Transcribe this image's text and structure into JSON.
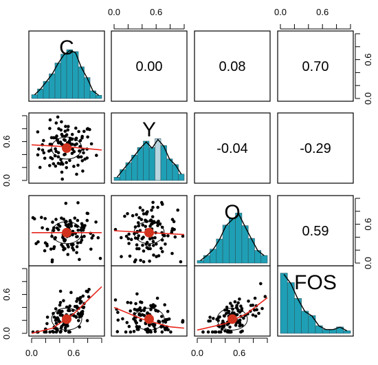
{
  "chart_data": {
    "type": "scatter-matrix",
    "variables": [
      "C",
      "Y",
      "O",
      "FOS"
    ],
    "axis": {
      "range": [
        0,
        1
      ],
      "ticks": [
        0.0,
        0.2,
        0.4,
        0.6,
        0.8,
        1.0
      ],
      "tick_labels": [
        "0.0",
        "0.6"
      ]
    },
    "colors": {
      "histogram_fill": "#1f9fb5",
      "histogram_fill_light": "#b8d6e0",
      "density_line": "#000000",
      "scatter_point": "#000000",
      "loess_line": "#e8261c",
      "mean_point": "#d0321d"
    },
    "correlations": [
      {
        "row": 0,
        "col": 1,
        "value": "0.00"
      },
      {
        "row": 0,
        "col": 2,
        "value": "0.08"
      },
      {
        "row": 0,
        "col": 3,
        "value": "0.70"
      },
      {
        "row": 1,
        "col": 2,
        "value": "-0.04"
      },
      {
        "row": 1,
        "col": 3,
        "value": "-0.29"
      },
      {
        "row": 2,
        "col": 3,
        "value": "0.59"
      }
    ],
    "histograms": {
      "C": [
        0.06,
        0.15,
        0.27,
        0.39,
        0.56,
        0.7,
        0.77,
        0.74,
        0.5,
        0.33,
        0.12,
        0.05
      ],
      "Y": [
        0.05,
        0.17,
        0.28,
        0.4,
        0.52,
        0.62,
        0.52,
        0.66,
        0.55,
        0.34,
        0.25,
        0.1
      ],
      "O": [
        0.04,
        0.12,
        0.22,
        0.38,
        0.6,
        0.7,
        0.79,
        0.59,
        0.39,
        0.2,
        0.12
      ],
      "FOS": [
        0.95,
        0.8,
        0.55,
        0.35,
        0.28,
        0.12,
        0.06,
        0.06,
        0.1,
        0.04
      ]
    },
    "mean_points": [
      {
        "row": 1,
        "col": 0,
        "x": 0.5,
        "y": 0.5
      },
      {
        "row": 2,
        "col": 0,
        "x": 0.5,
        "y": 0.47
      },
      {
        "row": 2,
        "col": 1,
        "x": 0.5,
        "y": 0.47
      },
      {
        "row": 3,
        "col": 0,
        "x": 0.5,
        "y": 0.22
      },
      {
        "row": 3,
        "col": 1,
        "x": 0.5,
        "y": 0.22
      },
      {
        "row": 3,
        "col": 2,
        "x": 0.5,
        "y": 0.22
      }
    ],
    "loess_lines": [
      {
        "row": 1,
        "col": 0,
        "points": [
          [
            0.0,
            0.55
          ],
          [
            0.5,
            0.52
          ],
          [
            1.0,
            0.47
          ]
        ]
      },
      {
        "row": 2,
        "col": 0,
        "points": [
          [
            0.0,
            0.47
          ],
          [
            0.5,
            0.47
          ],
          [
            1.0,
            0.47
          ]
        ]
      },
      {
        "row": 2,
        "col": 1,
        "points": [
          [
            0.0,
            0.5
          ],
          [
            0.5,
            0.47
          ],
          [
            1.0,
            0.44
          ]
        ]
      },
      {
        "row": 3,
        "col": 0,
        "points": [
          [
            0.0,
            0.0
          ],
          [
            0.3,
            0.08
          ],
          [
            0.6,
            0.3
          ],
          [
            1.0,
            0.72
          ]
        ]
      },
      {
        "row": 3,
        "col": 1,
        "points": [
          [
            0.0,
            0.4
          ],
          [
            0.4,
            0.22
          ],
          [
            0.8,
            0.1
          ],
          [
            1.0,
            0.08
          ]
        ]
      },
      {
        "row": 3,
        "col": 2,
        "points": [
          [
            0.0,
            0.05
          ],
          [
            0.4,
            0.15
          ],
          [
            0.7,
            0.3
          ],
          [
            1.0,
            0.55
          ]
        ]
      }
    ]
  }
}
